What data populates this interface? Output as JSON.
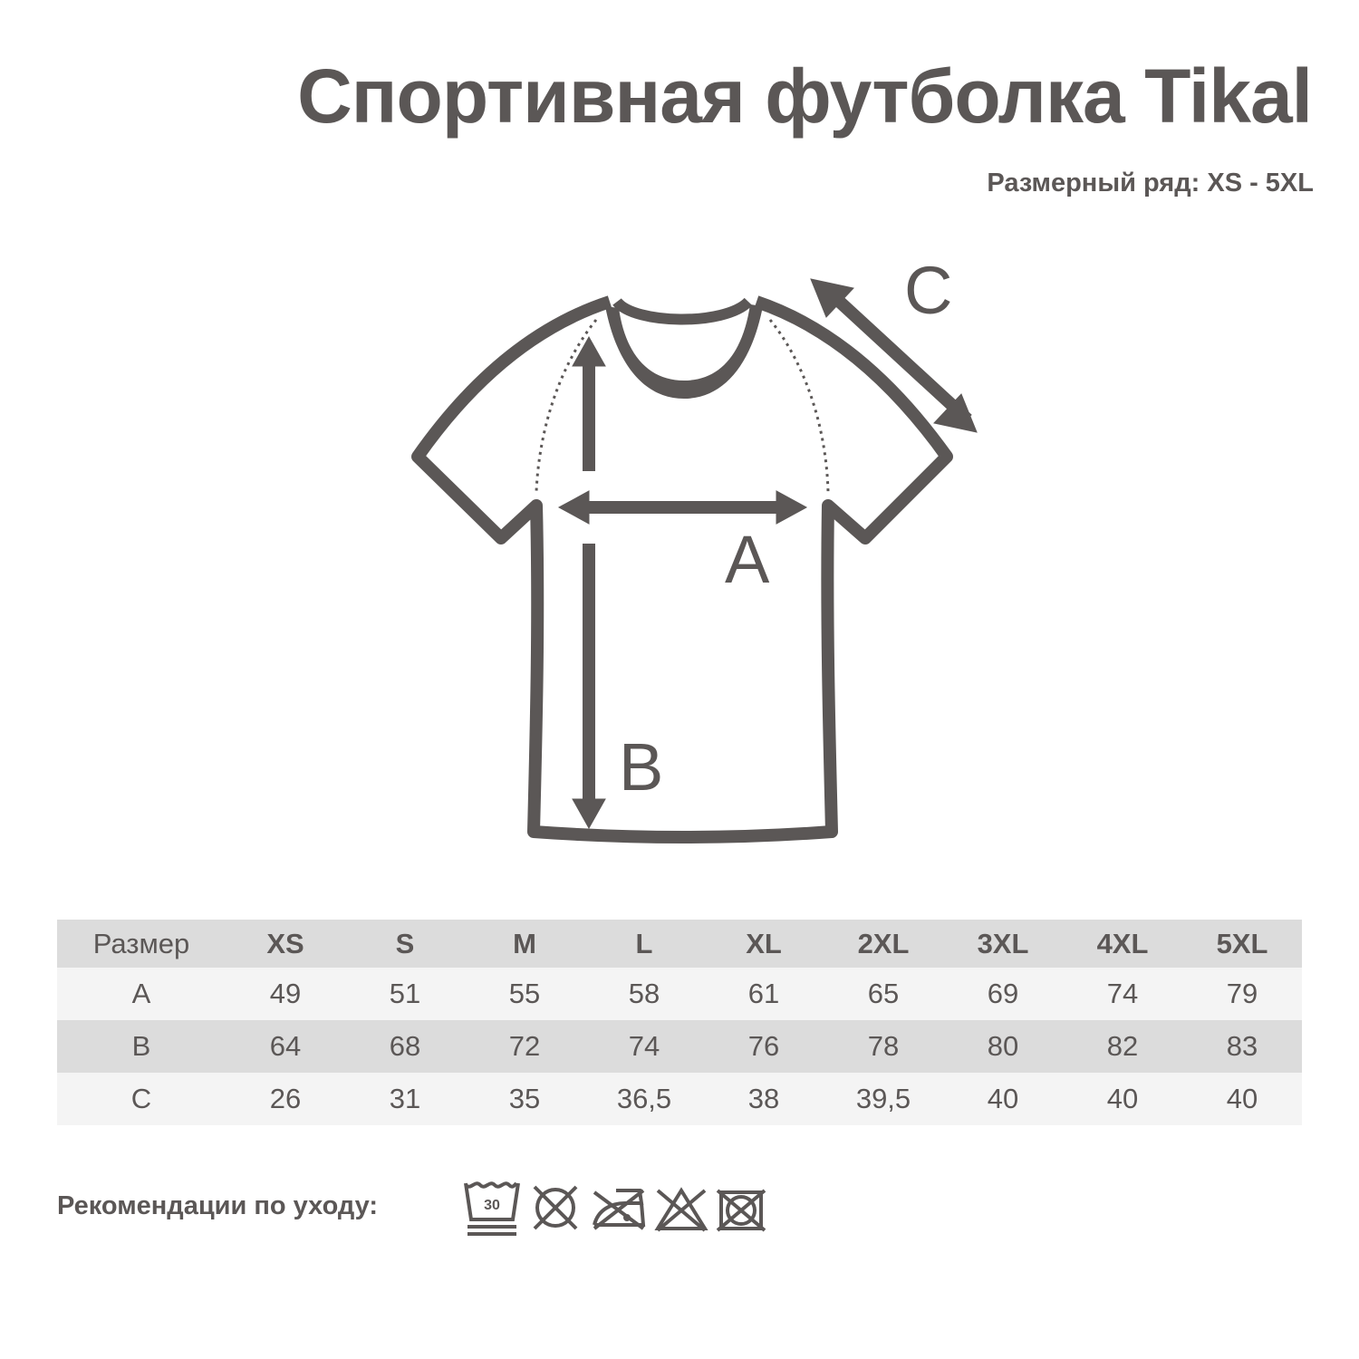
{
  "title": "Спортивная футболка Tikal",
  "subtitle": "Размерный ряд: XS - 5XL",
  "diagram": {
    "label_a": "A",
    "label_b": "B",
    "label_c": "C"
  },
  "table": {
    "header": [
      "Размер",
      "XS",
      "S",
      "M",
      "L",
      "XL",
      "2XL",
      "3XL",
      "4XL",
      "5XL"
    ],
    "rows": [
      [
        "A",
        "49",
        "51",
        "55",
        "58",
        "61",
        "65",
        "69",
        "74",
        "79"
      ],
      [
        "B",
        "64",
        "68",
        "72",
        "74",
        "76",
        "78",
        "80",
        "82",
        "83"
      ],
      [
        "C",
        "26",
        "31",
        "35",
        "36,5",
        "38",
        "39,5",
        "40",
        "40",
        "40"
      ]
    ]
  },
  "care": {
    "label": "Рекомендации по уходу:",
    "icons": [
      "wash-30-gentle-icon",
      "no-tumble-dry-icon",
      "no-iron-icon",
      "no-bleach-icon",
      "no-dry-clean-icon"
    ],
    "wash_temp": "30"
  },
  "colors": {
    "ink": "#5b5756",
    "row_dark": "#dcdcdc",
    "row_light": "#f4f4f4"
  }
}
